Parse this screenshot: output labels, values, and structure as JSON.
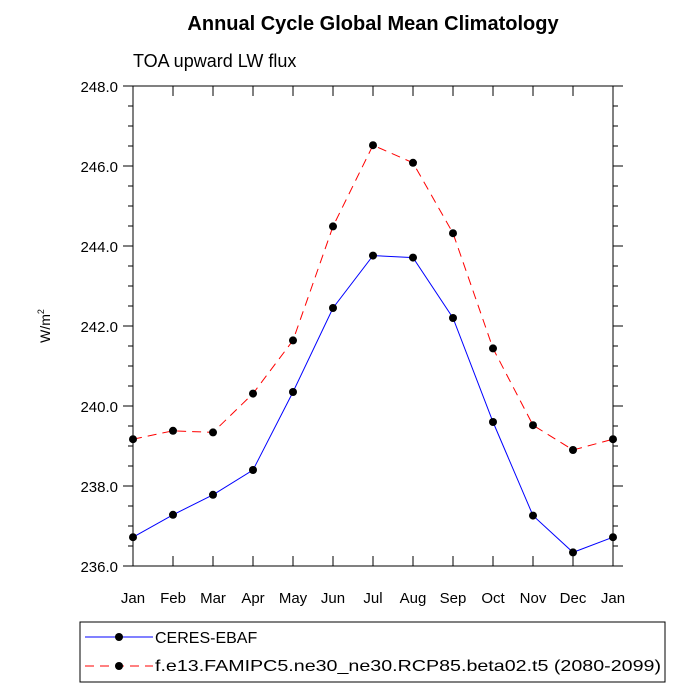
{
  "chart_data": {
    "type": "line",
    "title": "Annual Cycle Global Mean Climatology",
    "subtitle": "TOA upward LW flux",
    "xlabel": "",
    "ylabel": "W/m",
    "ylabel_sup": "2",
    "categories": [
      "Jan",
      "Feb",
      "Mar",
      "Apr",
      "May",
      "Jun",
      "Jul",
      "Aug",
      "Sep",
      "Oct",
      "Nov",
      "Dec",
      "Jan"
    ],
    "ylim": [
      236.0,
      248.0
    ],
    "yticks": [
      "236.0",
      "238.0",
      "240.0",
      "242.0",
      "244.0",
      "246.0",
      "248.0"
    ],
    "grid": false,
    "legend_position": "bottom",
    "series": [
      {
        "name": "CERES-EBAF",
        "color": "#0000ff",
        "dash": "solid",
        "values": [
          236.72,
          237.28,
          237.78,
          238.4,
          240.35,
          242.45,
          243.76,
          243.71,
          242.2,
          239.6,
          237.26,
          236.34,
          236.72
        ]
      },
      {
        "name": "f.e13.FAMIPC5.ne30_ne30.RCP85.beta02.t5 (2080-2099)",
        "color": "#ff0000",
        "dash": "dashed",
        "values": [
          239.17,
          239.38,
          239.34,
          240.31,
          241.64,
          244.49,
          246.52,
          246.08,
          244.32,
          241.44,
          239.52,
          238.9,
          239.17
        ]
      }
    ]
  }
}
